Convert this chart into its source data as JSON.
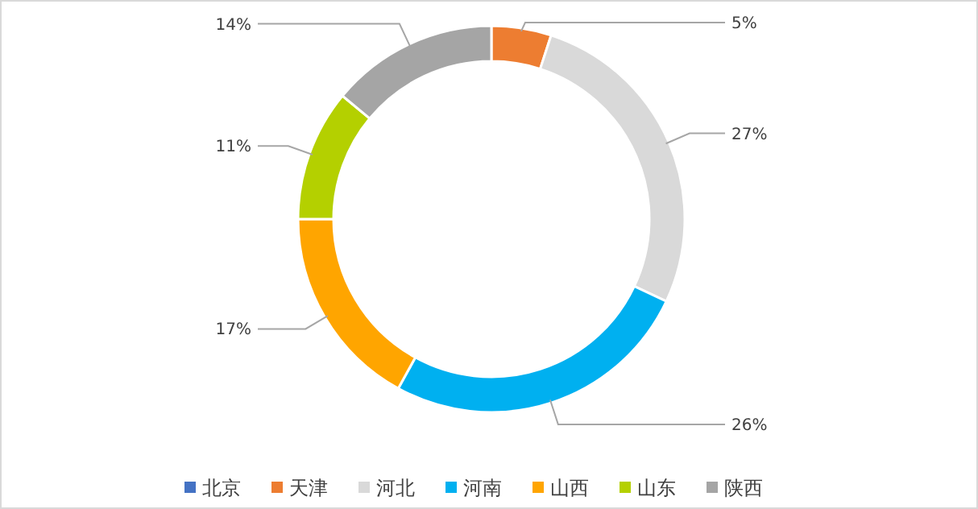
{
  "chart_data": {
    "type": "donut",
    "categories": [
      "北京",
      "天津",
      "河北",
      "河南",
      "山西",
      "山东",
      "陕西"
    ],
    "values": [
      0,
      5,
      27,
      26,
      17,
      11,
      14
    ],
    "colors": [
      "#4472c4",
      "#ed7d31",
      "#d9d9d9",
      "#00b0f0",
      "#ffa500",
      "#b4d000",
      "#a5a5a5"
    ],
    "value_labels": [
      null,
      "5%",
      "27%",
      "26%",
      "17%",
      "11%",
      "14%"
    ],
    "legend": "bottom"
  }
}
